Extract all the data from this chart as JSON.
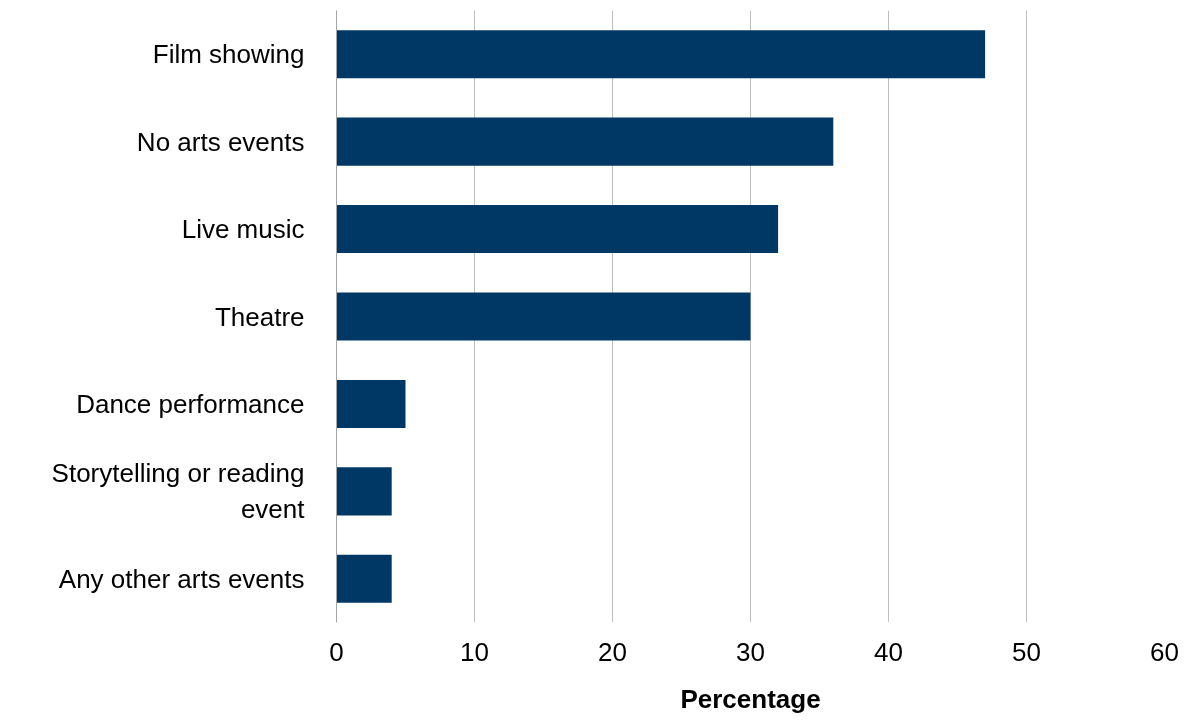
{
  "chart_data": {
    "type": "bar",
    "orientation": "horizontal",
    "xlabel": "Percentage",
    "categories": [
      "Film showing",
      "No arts events",
      "Live music",
      "Theatre",
      "Dance performance",
      "Storytelling or reading event",
      "Any other arts events"
    ],
    "values": [
      47,
      36,
      32,
      30,
      5,
      4,
      4
    ],
    "color": "#003865",
    "xlim": [
      0,
      60
    ],
    "xticks": [
      0,
      10,
      20,
      30,
      40,
      50,
      60
    ],
    "grid": "x"
  }
}
